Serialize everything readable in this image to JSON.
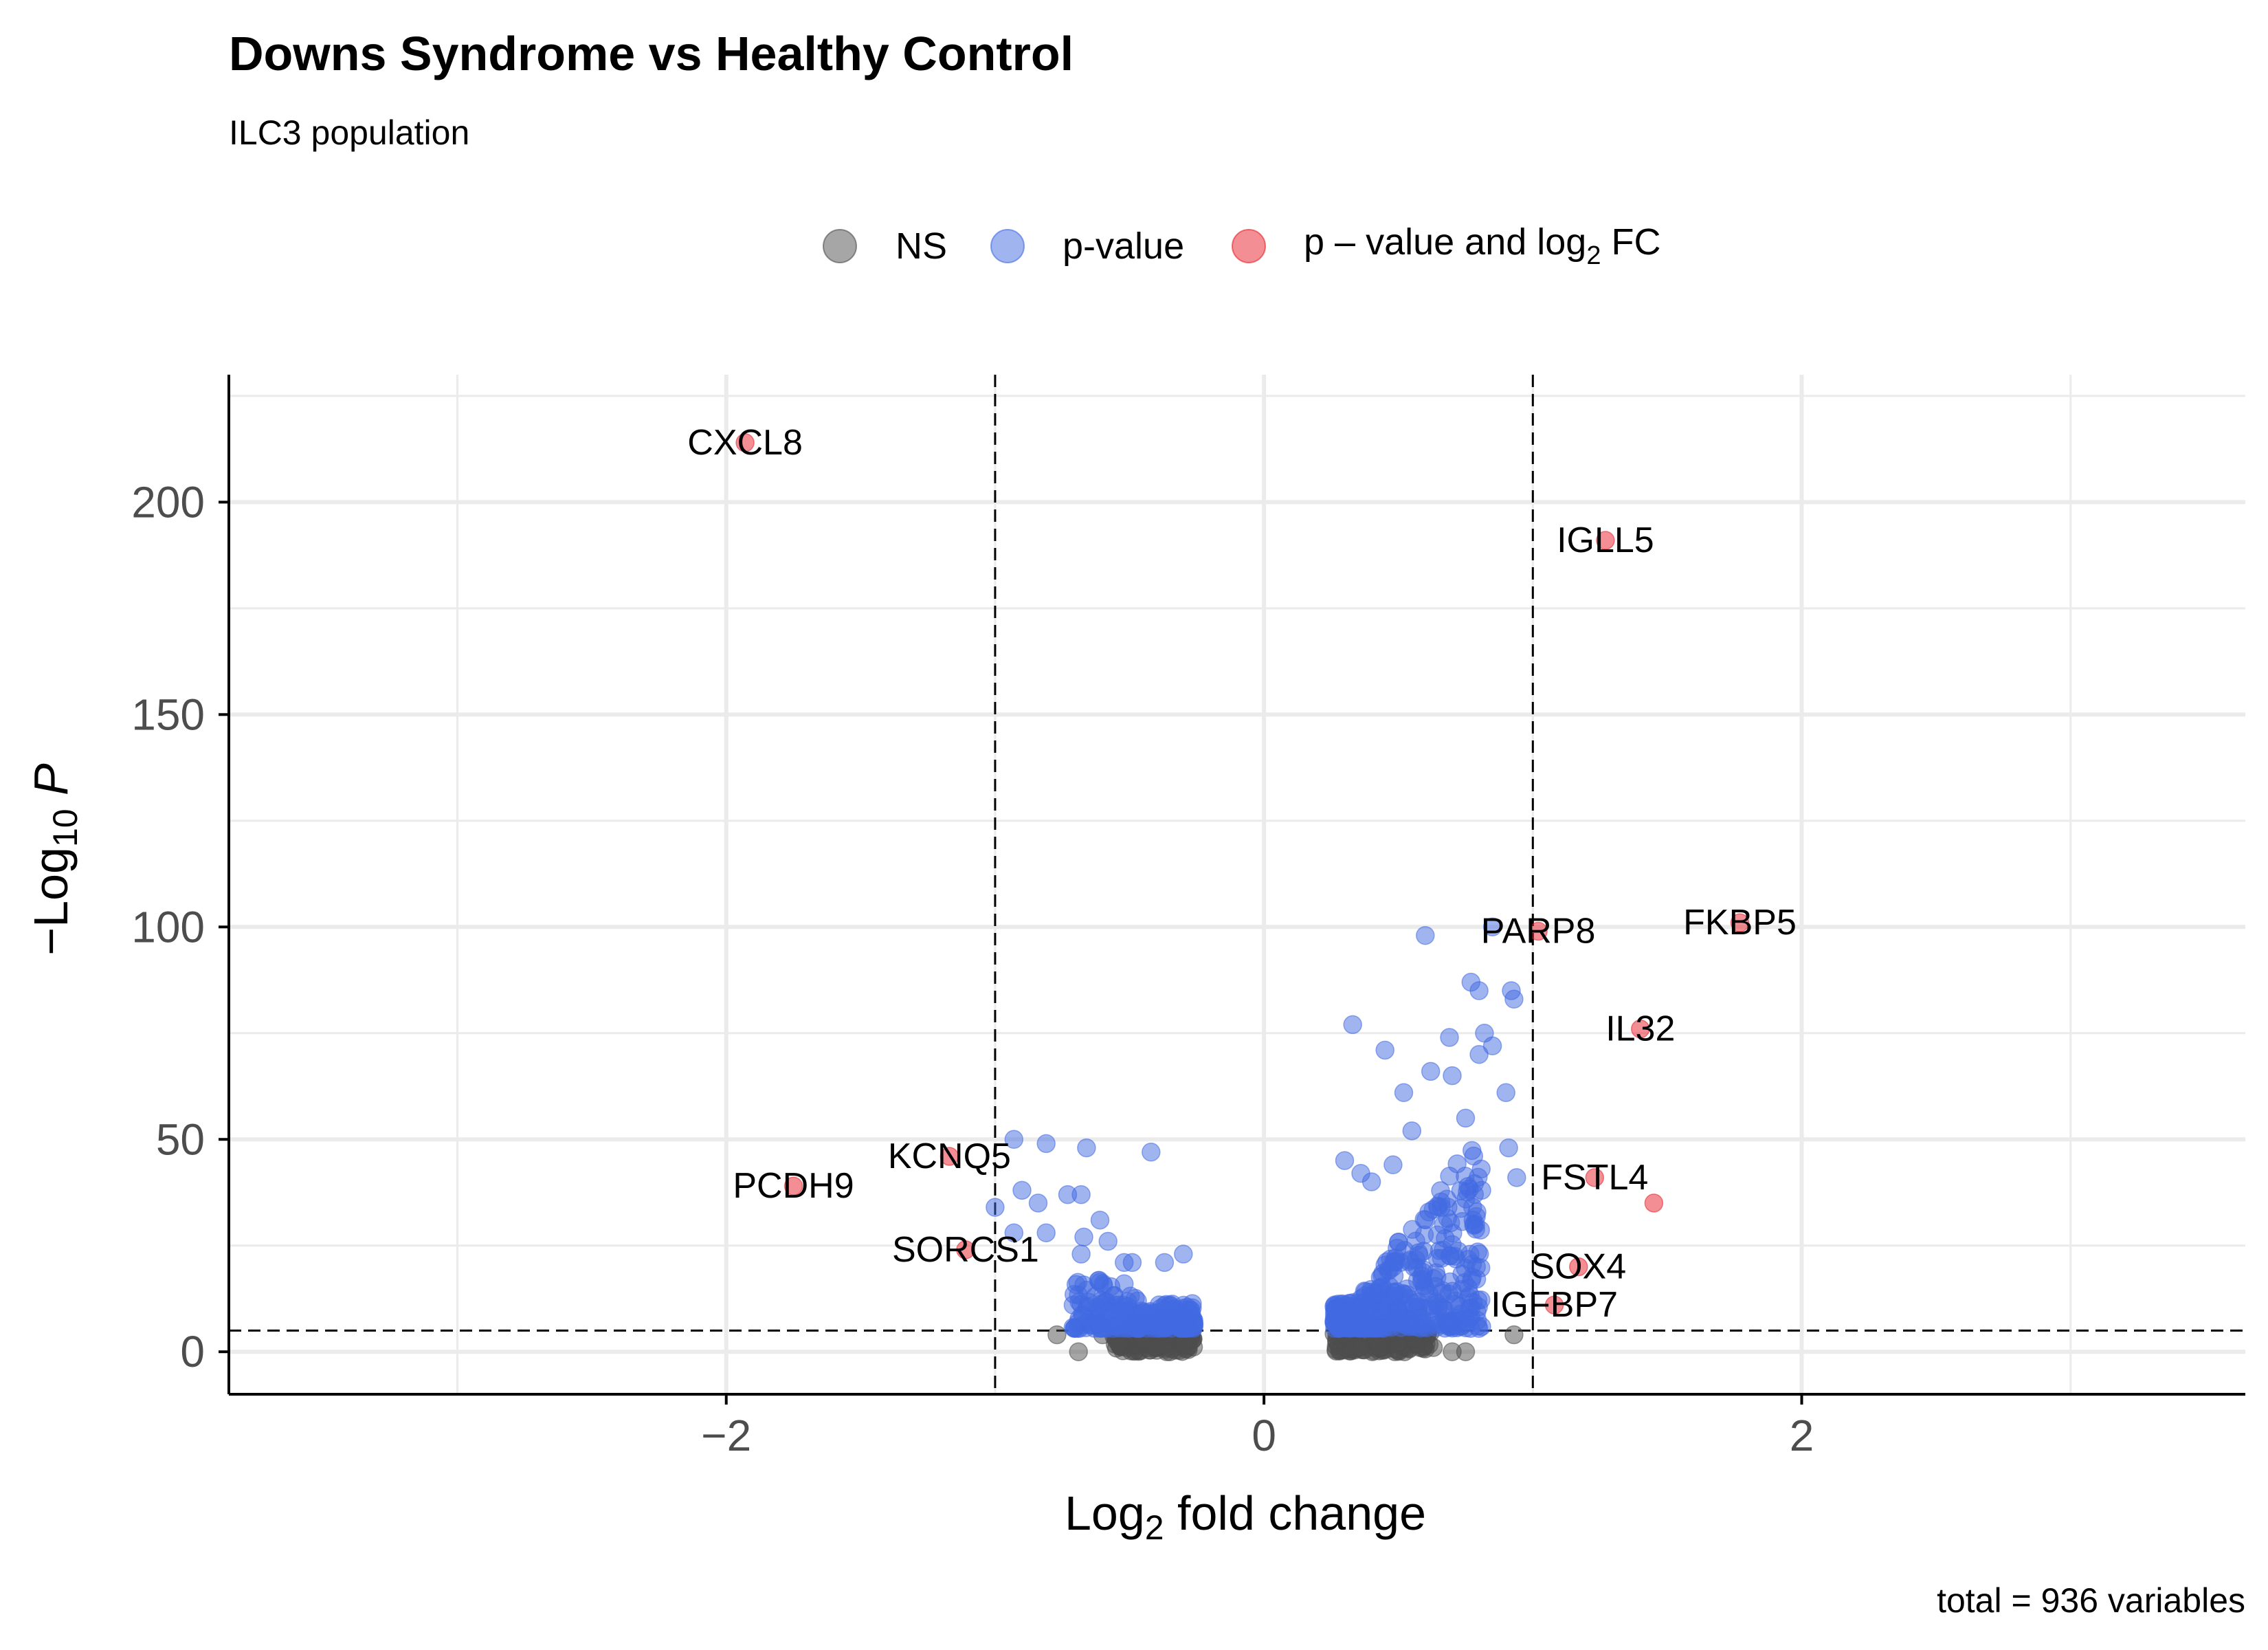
{
  "chart_data": {
    "type": "scatter",
    "title": "Downs Syndrome vs Healthy Control",
    "subtitle": "ILC3 population",
    "xlabel": "Log2 fold change",
    "ylabel": "-Log10 P",
    "caption": "total = 936 variables",
    "xlim": [
      -3.85,
      3.65
    ],
    "ylim": [
      -10,
      230
    ],
    "x_ticks": [
      -2,
      0,
      2
    ],
    "x_tick_labels": [
      "-2",
      "0",
      "2"
    ],
    "y_ticks": [
      0,
      50,
      100,
      150,
      200
    ],
    "y_tick_labels": [
      "0",
      "50",
      "100",
      "150",
      "200"
    ],
    "x_minor_ticks": [
      -3,
      -1,
      1,
      3
    ],
    "y_minor_ticks": [
      25,
      75,
      125,
      175,
      225
    ],
    "grid": true,
    "legend_position": "top",
    "thresholds": {
      "log2fc": [
        -1,
        1
      ],
      "neg_log10_p": 5
    },
    "legend": [
      {
        "key": "NS",
        "label": "NS",
        "color": "#4d4d4d"
      },
      {
        "key": "p",
        "label": "p-value",
        "color": "#4169e1"
      },
      {
        "key": "pfc",
        "label": "p – value and log",
        "sub": "2",
        "suffix": " FC",
        "color": "#e8202a"
      }
    ],
    "labeled_points": [
      {
        "gene": "CXCL8",
        "x": -1.93,
        "y": 214
      },
      {
        "gene": "IGLL5",
        "x": 1.27,
        "y": 191
      },
      {
        "gene": "PARP8",
        "x": 1.02,
        "y": 99
      },
      {
        "gene": "FKBP5",
        "x": 1.77,
        "y": 101
      },
      {
        "gene": "IL32",
        "x": 1.4,
        "y": 76
      },
      {
        "gene": "KCNQ5",
        "x": -1.17,
        "y": 46
      },
      {
        "gene": "PCDH9",
        "x": -1.75,
        "y": 39
      },
      {
        "gene": "FSTL4",
        "x": 1.23,
        "y": 41
      },
      {
        "gene": "SORCS1",
        "x": -1.11,
        "y": 24
      },
      {
        "gene": "SOX4",
        "x": 1.17,
        "y": 20
      },
      {
        "gene": "IGFBP7",
        "x": 1.08,
        "y": 11
      }
    ],
    "extra_pfc_points": [
      {
        "x": 1.45,
        "y": 35
      }
    ],
    "p_points": [
      [
        0.6,
        98
      ],
      [
        0.85,
        100
      ],
      [
        0.77,
        87
      ],
      [
        0.8,
        85
      ],
      [
        0.92,
        85
      ],
      [
        0.93,
        83
      ],
      [
        0.33,
        77
      ],
      [
        0.82,
        75
      ],
      [
        0.69,
        74
      ],
      [
        0.45,
        71
      ],
      [
        0.8,
        70
      ],
      [
        0.85,
        72
      ],
      [
        0.52,
        61
      ],
      [
        0.9,
        61
      ],
      [
        0.91,
        48
      ],
      [
        0.94,
        41
      ],
      [
        0.81,
        38
      ],
      [
        0.75,
        55
      ],
      [
        0.7,
        65
      ],
      [
        0.62,
        66
      ],
      [
        0.55,
        52
      ],
      [
        0.48,
        44
      ],
      [
        0.3,
        45
      ],
      [
        0.36,
        42
      ],
      [
        0.4,
        40
      ],
      [
        0.66,
        34
      ],
      [
        0.78,
        30
      ],
      [
        0.66,
        22
      ],
      [
        0.59,
        17
      ],
      [
        0.76,
        15
      ],
      [
        0.79,
        20
      ],
      [
        0.71,
        12
      ],
      [
        0.62,
        10
      ],
      [
        0.67,
        10
      ],
      [
        -0.93,
        50
      ],
      [
        -0.81,
        49
      ],
      [
        -0.66,
        48
      ],
      [
        -0.42,
        47
      ],
      [
        -0.9,
        38
      ],
      [
        -1.0,
        34
      ],
      [
        -0.84,
        35
      ],
      [
        -0.73,
        37
      ],
      [
        -0.68,
        37
      ],
      [
        -0.61,
        31
      ],
      [
        -0.93,
        28
      ],
      [
        -0.67,
        27
      ],
      [
        -0.68,
        23
      ],
      [
        -0.49,
        21
      ],
      [
        -0.52,
        21
      ],
      [
        -0.81,
        28
      ],
      [
        -0.58,
        26
      ],
      [
        -0.37,
        21
      ],
      [
        -0.3,
        23
      ],
      [
        -0.71,
        11
      ],
      [
        -0.52,
        16
      ]
    ],
    "ns_points": [
      [
        -0.77,
        4
      ],
      [
        -0.69,
        0
      ],
      [
        -0.6,
        4
      ],
      [
        -0.54,
        2
      ],
      [
        -0.45,
        3
      ],
      [
        -0.4,
        1
      ],
      [
        -0.35,
        0
      ],
      [
        -0.3,
        2
      ],
      [
        0.3,
        4
      ],
      [
        0.36,
        1
      ],
      [
        0.43,
        1
      ],
      [
        0.5,
        2
      ],
      [
        0.58,
        1
      ],
      [
        0.63,
        1
      ],
      [
        0.7,
        0
      ],
      [
        0.75,
        0
      ],
      [
        0.93,
        4
      ],
      [
        0.52,
        5
      ],
      [
        0.56,
        3
      ]
    ],
    "p_cluster_count": 620,
    "ns_cluster_count": 260,
    "cluster_seed": 936
  }
}
